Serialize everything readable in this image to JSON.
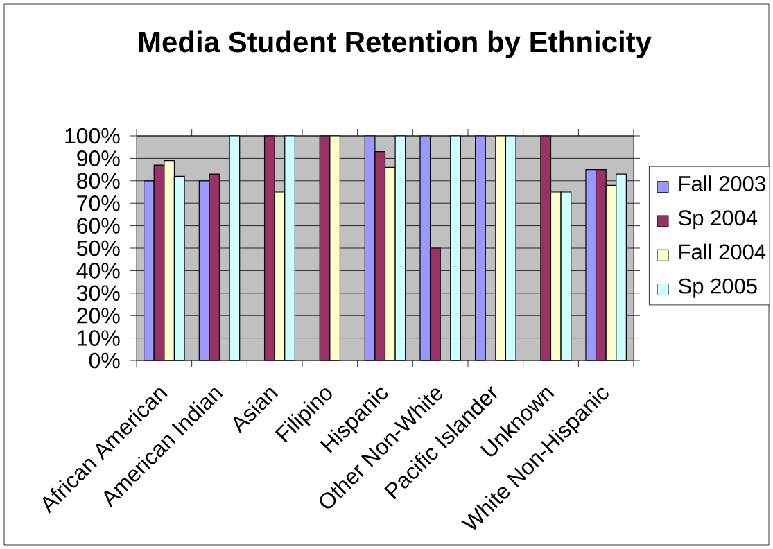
{
  "chart_data": {
    "type": "bar",
    "title": "Media  Student Retention by Ethnicity",
    "categories": [
      "African American",
      "American Indian",
      "Asian",
      "Filipino",
      "Hispanic",
      "Other Non-White",
      "Pacific Islander",
      "Unknown",
      "White Non-Hispanic"
    ],
    "series": [
      {
        "name": "Fall 2003",
        "color": "#9999ff",
        "values": [
          80,
          80,
          null,
          null,
          100,
          100,
          100,
          null,
          85
        ]
      },
      {
        "name": "Sp 2004",
        "color": "#993366",
        "values": [
          87,
          83,
          100,
          100,
          93,
          50,
          null,
          100,
          85
        ]
      },
      {
        "name": "Fall 2004",
        "color": "#ffffcc",
        "values": [
          89,
          null,
          75,
          100,
          86,
          null,
          100,
          75,
          78
        ]
      },
      {
        "name": "Sp 2005",
        "color": "#ccffff",
        "values": [
          82,
          100,
          100,
          null,
          100,
          100,
          100,
          75,
          83
        ]
      }
    ],
    "ylim": [
      0,
      100
    ],
    "yticks": [
      {
        "value": 0,
        "label": "0%"
      },
      {
        "value": 10,
        "label": "10%"
      },
      {
        "value": 20,
        "label": "20%"
      },
      {
        "value": 30,
        "label": "30%"
      },
      {
        "value": 40,
        "label": "40%"
      },
      {
        "value": 50,
        "label": "50%"
      },
      {
        "value": 60,
        "label": "60%"
      },
      {
        "value": 70,
        "label": "70%"
      },
      {
        "value": 80,
        "label": "80%"
      },
      {
        "value": 90,
        "label": "90%"
      },
      {
        "value": 100,
        "label": "100%"
      }
    ],
    "grid": "y",
    "legend": "right"
  }
}
